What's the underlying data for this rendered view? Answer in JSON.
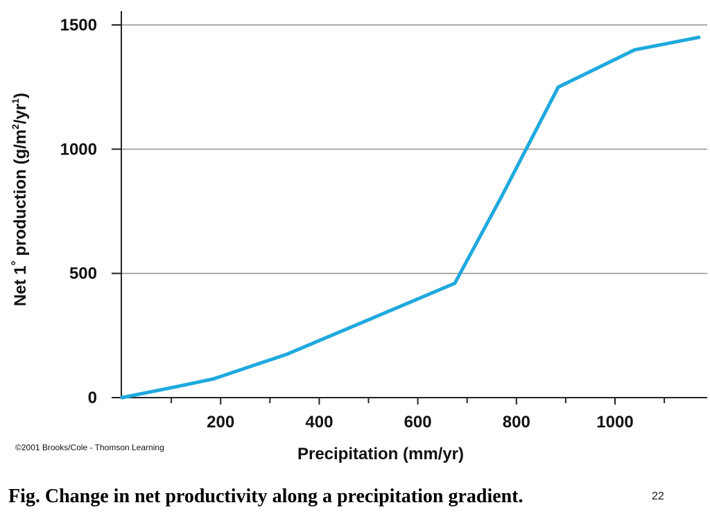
{
  "chart_data": {
    "type": "line",
    "xlabel": "Precipitation (mm/yr)",
    "ylabel_parts": {
      "prefix": "Net 1",
      "degree": "°",
      "middle": " production (g/m",
      "sup1": "2",
      "slash": "/yr",
      "sup2": "1",
      "suffix": ")"
    },
    "xlim": [
      0,
      1200
    ],
    "ylim": [
      0,
      1500
    ],
    "x_ticks": [
      200,
      400,
      600,
      800,
      1000
    ],
    "x_minor_ticks": [
      100,
      300,
      500,
      700,
      900,
      1100
    ],
    "y_ticks": [
      0,
      500,
      1000,
      1500
    ],
    "grid": "horizontal",
    "series": [
      {
        "color": "#1fa9de",
        "points": [
          {
            "x": 0,
            "y": 0
          },
          {
            "x": 100,
            "y": 40
          },
          {
            "x": 185,
            "y": 75
          },
          {
            "x": 335,
            "y": 175
          },
          {
            "x": 675,
            "y": 460
          },
          {
            "x": 770,
            "y": 810
          },
          {
            "x": 885,
            "y": 1250
          },
          {
            "x": 1040,
            "y": 1400
          },
          {
            "x": 1170,
            "y": 1450
          }
        ]
      }
    ]
  },
  "credit": "©2001 Brooks/Cole - Thomson Learning",
  "caption": "Fig. Change in net productivity along a precipitation gradient.",
  "slide_number": "22",
  "colors": {
    "line": "#1fa9de",
    "axis": "#222222",
    "grid": "#8f8f8f"
  }
}
